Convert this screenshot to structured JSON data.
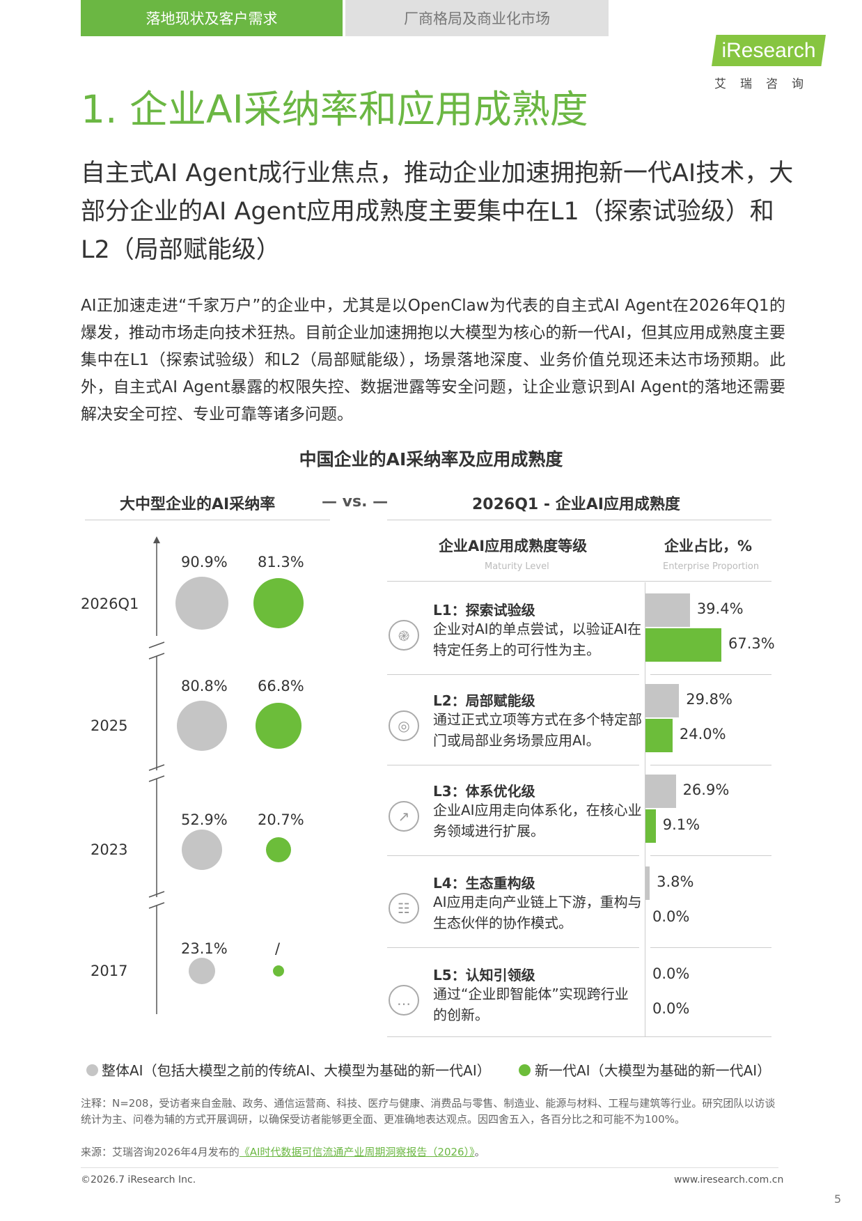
{
  "tabs": [
    {
      "label": "落地现状及客户需求",
      "active": true
    },
    {
      "label": "厂商格局及商业化市场",
      "active": false
    }
  ],
  "logo": {
    "text": "iResearch",
    "subtext": "艾瑞咨询"
  },
  "title": "1. 企业AI采纳率和应用成熟度",
  "subtitle": "自主式AI Agent成行业焦点，推动企业加速拥抱新一代AI技术，大部分企业的AI Agent应用成熟度主要集中在L1（探索试验级）和L2（局部赋能级）",
  "paragraph": "AI正加速走进“千家万户”的企业中，尤其是以OpenClaw为代表的自主式AI Agent在2026年Q1的爆发，推动市场走向技术狂热。目前企业加速拥抱以大模型为核心的新一代AI，但其应用成熟度主要集中在L1（探索试验级）和L2（局部赋能级），场景落地深度、业务价值兑现还未达市场预期。此外，自主式AI Agent暴露的权限失控、数据泄露等安全问题，让企业意识到AI Agent的落地还需要解决安全可控、专业可靠等诸多问题。",
  "chart_data": [
    {
      "type": "bubble",
      "title": "中国企业的AI采纳率及应用成熟度",
      "header": "大中型企业的AI采纳率",
      "categories": [
        "2026Q1",
        "2025",
        "2023",
        "2017"
      ],
      "series": [
        {
          "name": "整体AI（包括大模型之前的传统AI、大模型为基础的新一代AI）",
          "color": "#c5c5c5",
          "values": [
            90.9,
            80.8,
            52.9,
            23.1
          ],
          "labels": [
            "90.9%",
            "80.8%",
            "52.9%",
            "23.1%"
          ]
        },
        {
          "name": "新一代AI（大模型为基础的新一代AI）",
          "color": "#6cbd3a",
          "values": [
            81.3,
            66.8,
            20.7,
            null
          ],
          "labels": [
            "81.3%",
            "66.8%",
            "20.7%",
            "/"
          ]
        }
      ]
    },
    {
      "type": "bar",
      "header": "2026Q1 - 企业AI应用成熟度",
      "col_level": "企业AI应用成熟度等级",
      "col_level_en": "Maturity Level",
      "col_ratio": "企业占比，%",
      "col_ratio_en": "Enterprise Proportion",
      "levels": [
        {
          "title": "L1：探索试验级",
          "desc": "企业对AI的单点尝试，以验证AI在特定任务上的可行性为主。",
          "icon": "swirl-icon",
          "overall": 39.4,
          "overall_label": "39.4%",
          "new": 67.3,
          "new_label": "67.3%"
        },
        {
          "title": "L2：局部赋能级",
          "desc": "通过正式立项等方式在多个特定部门或局部业务场景应用AI。",
          "icon": "target-icon",
          "overall": 29.8,
          "overall_label": "29.8%",
          "new": 24.0,
          "new_label": "24.0%"
        },
        {
          "title": "L3：体系优化级",
          "desc": "企业AI应用走向体系化，在核心业务领域进行扩展。",
          "icon": "stairs-icon",
          "overall": 26.9,
          "overall_label": "26.9%",
          "new": 9.1,
          "new_label": "9.1%"
        },
        {
          "title": "L4：生态重构级",
          "desc": "AI应用走向产业链上下游，重构与生态伙伴的协作模式。",
          "icon": "document-search-icon",
          "overall": 3.8,
          "overall_label": "3.8%",
          "new": 0.0,
          "new_label": "0.0%"
        },
        {
          "title": "L5：认知引领级",
          "desc": "通过“企业即智能体”实现跨行业的创新。",
          "icon": "chat-icon",
          "overall": 0.0,
          "overall_label": "0.0%",
          "new": 0.0,
          "new_label": "0.0%"
        }
      ]
    }
  ],
  "vs_label": "— vs. —",
  "legend": {
    "overall": "整体AI（包括大模型之前的传统AI、大模型为基础的新一代AI）",
    "new": "新一代AI（大模型为基础的新一代AI）"
  },
  "note": "注释：N=208，受访者来自金融、政务、通信运营商、科技、医疗与健康、消费品与零售、制造业、能源与材料、工程与建筑等行业。研究团队以访谈统计为主、问卷为辅的方式开展调研，以确保受访者能够更全面、更准确地表达观点。因四舍五入，各百分比之和可能不为100%。",
  "source_prefix": "来源：艾瑞咨询2026年4月发布的",
  "source_link": "《AI时代数据可信流通产业周期洞察报告（2026）》",
  "source_suffix": "。",
  "footer": {
    "copyright": "©2026.7 iResearch Inc.",
    "website": "www.iresearch.com.cn",
    "page": "5"
  }
}
